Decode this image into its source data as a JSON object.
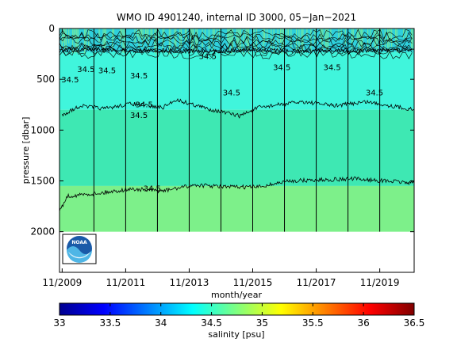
{
  "chart_data": {
    "type": "heatmap",
    "title": "WMO ID 4901240, internal ID 3000, 05−Jan−2021",
    "xlabel": "month/year",
    "ylabel": "pressure [dbar]",
    "x_range": [
      "2009-10",
      "2020-12"
    ],
    "x_ticks": [
      "11/2009",
      "11/2011",
      "11/2013",
      "11/2015",
      "11/2017",
      "11/2019"
    ],
    "x_tick_positions": [
      "2009-11",
      "2011-11",
      "2013-11",
      "2015-11",
      "2017-11",
      "2019-11"
    ],
    "y_reversed": true,
    "ylim": [
      0,
      2400
    ],
    "y_ticks": [
      0,
      500,
      1000,
      1500,
      2000
    ],
    "max_profile_depth": 2000,
    "year_lines": [
      "2010-11",
      "2011-11",
      "2012-11",
      "2013-11",
      "2014-11",
      "2015-11",
      "2016-11",
      "2017-11",
      "2018-11",
      "2019-11"
    ],
    "bands": [
      {
        "salinity": 34.45,
        "color": "#2fd0dc",
        "top_pressure": 0
      },
      {
        "salinity": 34.62,
        "color": "#40f5dc",
        "top_pressure": 230
      },
      {
        "salinity": 34.72,
        "color": "#3ee8b3",
        "top_pressure": 800
      },
      {
        "salinity": 34.82,
        "color": "#7df08a",
        "top_pressure": 1550
      }
    ],
    "contour_lines": [
      {
        "level": 34.5,
        "points": [
          [
            "2009-11",
            210
          ],
          [
            "2011-01",
            200
          ],
          [
            "2012-01",
            220
          ],
          [
            "2013-01",
            215
          ],
          [
            "2014-01",
            225
          ],
          [
            "2015-01",
            220
          ],
          [
            "2016-01",
            210
          ],
          [
            "2017-01",
            225
          ],
          [
            "2018-01",
            215
          ],
          [
            "2019-01",
            220
          ],
          [
            "2020-01",
            215
          ],
          [
            "2020-12",
            210
          ]
        ]
      },
      {
        "level": 34.5,
        "points": [
          [
            "2009-11",
            850
          ],
          [
            "2010-06",
            760
          ],
          [
            "2011-03",
            790
          ],
          [
            "2012-01",
            740
          ],
          [
            "2013-01",
            780
          ],
          [
            "2013-06",
            700
          ],
          [
            "2014-06",
            790
          ],
          [
            "2015-06",
            860
          ],
          [
            "2016-01",
            780
          ],
          [
            "2016-06",
            760
          ],
          [
            "2017-06",
            720
          ],
          [
            "2018-06",
            760
          ],
          [
            "2019-06",
            720
          ],
          [
            "2020-12",
            800
          ]
        ]
      },
      {
        "level": 34.5,
        "points": [
          [
            "2009-10",
            1800
          ],
          [
            "2010-01",
            1650
          ],
          [
            "2011-01",
            1620
          ],
          [
            "2012-01",
            1580
          ],
          [
            "2013-01",
            1600
          ],
          [
            "2014-01",
            1540
          ],
          [
            "2015-01",
            1560
          ],
          [
            "2016-01",
            1560
          ],
          [
            "2017-01",
            1500
          ],
          [
            "2018-01",
            1490
          ],
          [
            "2019-01",
            1480
          ],
          [
            "2020-01",
            1500
          ],
          [
            "2020-12",
            1520
          ]
        ]
      }
    ],
    "contour_labels": [
      {
        "text": "34.5",
        "x": "2010-02",
        "y": 530
      },
      {
        "text": "34.5",
        "x": "2010-08",
        "y": 430
      },
      {
        "text": "34.5",
        "x": "2011-04",
        "y": 440
      },
      {
        "text": "34.5",
        "x": "2012-04",
        "y": 490
      },
      {
        "text": "34.5",
        "x": "2012-06",
        "y": 775
      },
      {
        "text": "34.5",
        "x": "2012-04",
        "y": 880
      },
      {
        "text": "34.5",
        "x": "2012-09",
        "y": 1600
      },
      {
        "text": "34.5",
        "x": "2014-06",
        "y": 300
      },
      {
        "text": "34.5",
        "x": "2015-03",
        "y": 660
      },
      {
        "text": "34.5",
        "x": "2016-10",
        "y": 410
      },
      {
        "text": "34.5",
        "x": "2018-05",
        "y": 410
      },
      {
        "text": "34.5",
        "x": "2019-09",
        "y": 660
      }
    ]
  },
  "colorbar": {
    "label": "salinity [psu]",
    "min": 33,
    "max": 36.5,
    "ticks": [
      "33",
      "33.5",
      "34",
      "34.5",
      "35",
      "35.5",
      "36",
      "36.5"
    ]
  },
  "logo": {
    "name": "NOAA",
    "text": "NOAA"
  }
}
